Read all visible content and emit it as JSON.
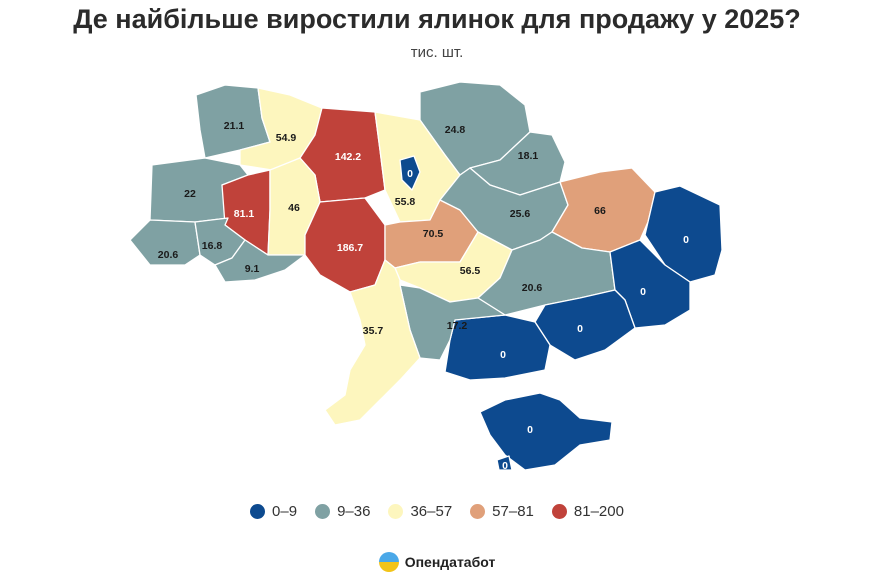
{
  "title": "Де найбільше виростили ялинок для продажу у 2025?",
  "subtitle": "тис. шт.",
  "legend": [
    {
      "label": "0–9",
      "color": "#0d4a8f"
    },
    {
      "label": "9–36",
      "color": "#7fa1a3"
    },
    {
      "label": "36–57",
      "color": "#fdf6be"
    },
    {
      "label": "57–81",
      "color": "#e0a07a"
    },
    {
      "label": "81–200",
      "color": "#c0423a"
    }
  ],
  "regions": [
    {
      "name": "Volyn",
      "value": "21.1",
      "cls": 1
    },
    {
      "name": "Rivne",
      "value": "54.9",
      "cls": 2
    },
    {
      "name": "Zhytomyr",
      "value": "142.2",
      "cls": 4
    },
    {
      "name": "Kyiv city",
      "value": "0",
      "cls": 0
    },
    {
      "name": "Kyiv",
      "value": "55.8",
      "cls": 2
    },
    {
      "name": "Chernihiv",
      "value": "24.8",
      "cls": 1
    },
    {
      "name": "Sumy",
      "value": "18.1",
      "cls": 1
    },
    {
      "name": "Lviv",
      "value": "22",
      "cls": 1
    },
    {
      "name": "Ternopil",
      "value": "81.1",
      "cls": 4
    },
    {
      "name": "Khmelnytskyi",
      "value": "46",
      "cls": 2
    },
    {
      "name": "Vinnytsia",
      "value": "186.7",
      "cls": 4
    },
    {
      "name": "Cherkasy",
      "value": "70.5",
      "cls": 3
    },
    {
      "name": "Poltava",
      "value": "25.6",
      "cls": 1
    },
    {
      "name": "Kharkiv",
      "value": "66",
      "cls": 3
    },
    {
      "name": "Luhansk",
      "value": "0",
      "cls": 0
    },
    {
      "name": "Zakarpattia",
      "value": "20.6",
      "cls": 1
    },
    {
      "name": "Ivano-Frankivsk",
      "value": "16.8",
      "cls": 1
    },
    {
      "name": "Chernivtsi",
      "value": "9.1",
      "cls": 1
    },
    {
      "name": "Kirovohrad",
      "value": "56.5",
      "cls": 2
    },
    {
      "name": "Dnipropetrovsk",
      "value": "20.6",
      "cls": 1
    },
    {
      "name": "Donetsk",
      "value": "0",
      "cls": 0
    },
    {
      "name": "Odesa",
      "value": "35.7",
      "cls": 2
    },
    {
      "name": "Mykolaiv",
      "value": "17.2",
      "cls": 1
    },
    {
      "name": "Kherson",
      "value": "0",
      "cls": 0
    },
    {
      "name": "Zaporizhzhia",
      "value": "0",
      "cls": 0
    },
    {
      "name": "Crimea",
      "value": "0",
      "cls": 0
    },
    {
      "name": "Sevastopol",
      "value": "0",
      "cls": 0
    }
  ],
  "brand": "Опендатабот"
}
